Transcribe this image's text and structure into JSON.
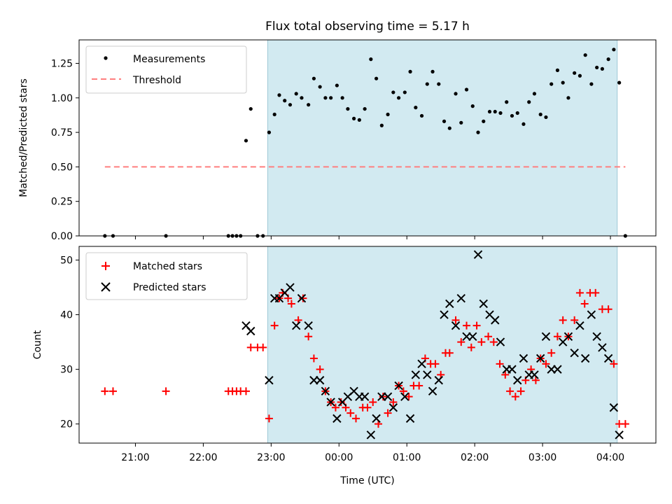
{
  "chart_data": [
    {
      "type": "scatter",
      "title": "Flux total observing time = 5.17 h",
      "xlabel": "",
      "ylabel": "Matched/Predicted stars",
      "ylim": [
        0,
        1.42
      ],
      "yticks": [
        "0.00",
        "0.25",
        "0.50",
        "0.75",
        "1.00",
        "1.25"
      ],
      "ytick_values": [
        0,
        0.25,
        0.5,
        0.75,
        1.0,
        1.25
      ],
      "xlim_hours": [
        20.17,
        28.67
      ],
      "legend": "top-left",
      "shaded_interval_hours": [
        22.95,
        28.1
      ],
      "shade_color": "#add8e6",
      "series": [
        {
          "name": "Measurements",
          "marker": "dot",
          "color": "#000000",
          "points": [
            [
              20.55,
              0
            ],
            [
              20.67,
              0
            ],
            [
              21.45,
              0
            ],
            [
              22.37,
              0
            ],
            [
              22.43,
              0
            ],
            [
              22.49,
              0
            ],
            [
              22.55,
              0
            ],
            [
              22.63,
              0.69
            ],
            [
              22.7,
              0.92
            ],
            [
              22.8,
              0
            ],
            [
              22.88,
              0
            ],
            [
              22.97,
              0.75
            ],
            [
              23.05,
              0.88
            ],
            [
              23.12,
              1.02
            ],
            [
              23.2,
              0.98
            ],
            [
              23.28,
              0.95
            ],
            [
              23.37,
              1.03
            ],
            [
              23.45,
              1.0
            ],
            [
              23.55,
              0.95
            ],
            [
              23.63,
              1.14
            ],
            [
              23.72,
              1.08
            ],
            [
              23.8,
              1.0
            ],
            [
              23.88,
              1.0
            ],
            [
              23.97,
              1.09
            ],
            [
              24.05,
              1.0
            ],
            [
              24.13,
              0.92
            ],
            [
              24.22,
              0.85
            ],
            [
              24.3,
              0.84
            ],
            [
              24.38,
              0.92
            ],
            [
              24.47,
              1.28
            ],
            [
              24.55,
              1.14
            ],
            [
              24.63,
              0.8
            ],
            [
              24.72,
              0.88
            ],
            [
              24.8,
              1.04
            ],
            [
              24.88,
              1.0
            ],
            [
              24.97,
              1.04
            ],
            [
              25.05,
              1.19
            ],
            [
              25.13,
              0.93
            ],
            [
              25.22,
              0.87
            ],
            [
              25.3,
              1.1
            ],
            [
              25.38,
              1.19
            ],
            [
              25.47,
              1.1
            ],
            [
              25.55,
              0.83
            ],
            [
              25.63,
              0.78
            ],
            [
              25.72,
              1.03
            ],
            [
              25.8,
              0.82
            ],
            [
              25.88,
              1.06
            ],
            [
              25.97,
              0.94
            ],
            [
              26.05,
              0.75
            ],
            [
              26.13,
              0.83
            ],
            [
              26.22,
              0.9
            ],
            [
              26.3,
              0.9
            ],
            [
              26.38,
              0.89
            ],
            [
              26.47,
              0.97
            ],
            [
              26.55,
              0.87
            ],
            [
              26.63,
              0.89
            ],
            [
              26.72,
              0.81
            ],
            [
              26.8,
              0.97
            ],
            [
              26.88,
              1.03
            ],
            [
              26.97,
              0.88
            ],
            [
              27.05,
              0.86
            ],
            [
              27.13,
              1.1
            ],
            [
              27.22,
              1.2
            ],
            [
              27.3,
              1.11
            ],
            [
              27.38,
              1.0
            ],
            [
              27.47,
              1.18
            ],
            [
              27.55,
              1.16
            ],
            [
              27.63,
              1.31
            ],
            [
              27.72,
              1.1
            ],
            [
              27.8,
              1.22
            ],
            [
              27.88,
              1.21
            ],
            [
              27.97,
              1.28
            ],
            [
              28.05,
              1.35
            ],
            [
              28.13,
              1.11
            ],
            [
              28.22,
              0
            ]
          ]
        },
        {
          "name": "Threshold",
          "marker": "dashed-line",
          "color": "#ff7f7f",
          "x_range_hours": [
            20.55,
            28.22
          ],
          "value": 0.5
        }
      ]
    },
    {
      "type": "scatter",
      "xlabel": "Time (UTC)",
      "ylabel": "Count",
      "ylim": [
        16.5,
        52.5
      ],
      "yticks": [
        "20",
        "30",
        "40",
        "50"
      ],
      "ytick_values": [
        20,
        30,
        40,
        50
      ],
      "xticks": [
        "21:00",
        "22:00",
        "23:00",
        "00:00",
        "01:00",
        "02:00",
        "03:00",
        "04:00"
      ],
      "xtick_hours": [
        21,
        22,
        23,
        24,
        25,
        26,
        27,
        28
      ],
      "xlim_hours": [
        20.17,
        28.67
      ],
      "legend": "top-left",
      "shaded_interval_hours": [
        22.95,
        28.1
      ],
      "series": [
        {
          "name": "Matched stars",
          "marker": "plus",
          "color": "#ff0000",
          "points": [
            [
              20.55,
              26
            ],
            [
              20.67,
              26
            ],
            [
              21.45,
              26
            ],
            [
              22.37,
              26
            ],
            [
              22.43,
              26
            ],
            [
              22.49,
              26
            ],
            [
              22.55,
              26
            ],
            [
              22.63,
              26
            ],
            [
              22.7,
              34
            ],
            [
              22.8,
              34
            ],
            [
              22.88,
              34
            ],
            [
              22.97,
              21
            ],
            [
              23.05,
              38
            ],
            [
              23.12,
              43
            ],
            [
              23.17,
              44
            ],
            [
              23.25,
              43
            ],
            [
              23.3,
              42
            ],
            [
              23.4,
              39
            ],
            [
              23.47,
              43
            ],
            [
              23.55,
              36
            ],
            [
              23.63,
              32
            ],
            [
              23.72,
              30
            ],
            [
              23.8,
              26
            ],
            [
              23.88,
              24
            ],
            [
              23.95,
              23
            ],
            [
              24.03,
              24
            ],
            [
              24.1,
              23
            ],
            [
              24.17,
              22
            ],
            [
              24.25,
              21
            ],
            [
              24.35,
              23
            ],
            [
              24.42,
              23
            ],
            [
              24.5,
              24
            ],
            [
              24.58,
              20
            ],
            [
              24.65,
              25
            ],
            [
              24.72,
              22
            ],
            [
              24.8,
              24
            ],
            [
              24.88,
              27
            ],
            [
              24.95,
              26
            ],
            [
              25.03,
              25
            ],
            [
              25.1,
              27
            ],
            [
              25.18,
              27
            ],
            [
              25.27,
              32
            ],
            [
              25.35,
              31
            ],
            [
              25.42,
              31
            ],
            [
              25.5,
              29
            ],
            [
              25.57,
              33
            ],
            [
              25.63,
              33
            ],
            [
              25.72,
              39
            ],
            [
              25.8,
              35
            ],
            [
              25.88,
              38
            ],
            [
              25.95,
              34
            ],
            [
              26.03,
              38
            ],
            [
              26.1,
              35
            ],
            [
              26.2,
              36
            ],
            [
              26.28,
              35
            ],
            [
              26.37,
              31
            ],
            [
              26.45,
              29
            ],
            [
              26.52,
              26
            ],
            [
              26.6,
              25
            ],
            [
              26.68,
              26
            ],
            [
              26.75,
              28
            ],
            [
              26.83,
              30
            ],
            [
              26.9,
              28
            ],
            [
              26.97,
              32
            ],
            [
              27.05,
              31
            ],
            [
              27.13,
              33
            ],
            [
              27.22,
              36
            ],
            [
              27.3,
              39
            ],
            [
              27.38,
              36
            ],
            [
              27.47,
              39
            ],
            [
              27.55,
              44
            ],
            [
              27.62,
              42
            ],
            [
              27.7,
              44
            ],
            [
              27.78,
              44
            ],
            [
              27.88,
              41
            ],
            [
              27.97,
              41
            ],
            [
              28.05,
              31
            ],
            [
              28.13,
              20
            ],
            [
              28.22,
              20
            ]
          ]
        },
        {
          "name": "Predicted stars",
          "marker": "x",
          "color": "#000000",
          "points": [
            [
              22.63,
              38
            ],
            [
              22.7,
              37
            ],
            [
              22.97,
              28
            ],
            [
              23.05,
              43
            ],
            [
              23.12,
              43
            ],
            [
              23.2,
              44
            ],
            [
              23.28,
              45
            ],
            [
              23.37,
              38
            ],
            [
              23.45,
              43
            ],
            [
              23.55,
              38
            ],
            [
              23.63,
              28
            ],
            [
              23.72,
              28
            ],
            [
              23.8,
              26
            ],
            [
              23.88,
              24
            ],
            [
              23.97,
              21
            ],
            [
              24.05,
              24
            ],
            [
              24.13,
              25
            ],
            [
              24.22,
              26
            ],
            [
              24.3,
              25
            ],
            [
              24.38,
              25
            ],
            [
              24.47,
              18
            ],
            [
              24.55,
              21
            ],
            [
              24.63,
              25
            ],
            [
              24.72,
              25
            ],
            [
              24.8,
              23
            ],
            [
              24.88,
              27
            ],
            [
              24.97,
              25
            ],
            [
              25.05,
              21
            ],
            [
              25.13,
              29
            ],
            [
              25.22,
              31
            ],
            [
              25.3,
              29
            ],
            [
              25.38,
              26
            ],
            [
              25.47,
              28
            ],
            [
              25.55,
              40
            ],
            [
              25.63,
              42
            ],
            [
              25.72,
              38
            ],
            [
              25.8,
              43
            ],
            [
              25.88,
              36
            ],
            [
              25.97,
              36
            ],
            [
              26.05,
              51
            ],
            [
              26.13,
              42
            ],
            [
              26.22,
              40
            ],
            [
              26.3,
              39
            ],
            [
              26.38,
              35
            ],
            [
              26.47,
              30
            ],
            [
              26.55,
              30
            ],
            [
              26.63,
              28
            ],
            [
              26.72,
              32
            ],
            [
              26.8,
              29
            ],
            [
              26.88,
              29
            ],
            [
              26.97,
              32
            ],
            [
              27.05,
              36
            ],
            [
              27.13,
              30
            ],
            [
              27.22,
              30
            ],
            [
              27.3,
              35
            ],
            [
              27.38,
              36
            ],
            [
              27.47,
              33
            ],
            [
              27.55,
              38
            ],
            [
              27.63,
              32
            ],
            [
              27.72,
              40
            ],
            [
              27.8,
              36
            ],
            [
              27.88,
              34
            ],
            [
              27.97,
              32
            ],
            [
              28.05,
              23
            ],
            [
              28.13,
              18
            ]
          ]
        }
      ]
    }
  ]
}
